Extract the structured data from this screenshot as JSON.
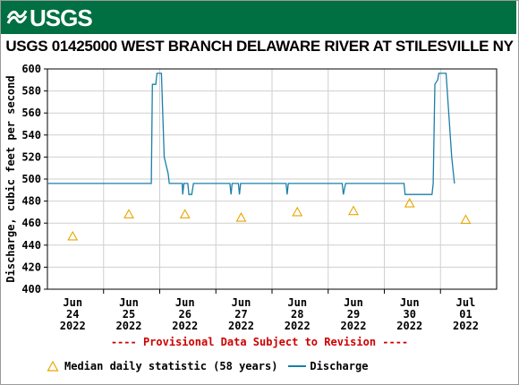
{
  "header": {
    "logo_text": "USGS",
    "logo_icon": "usgs-wave-icon",
    "brand_color": "#006f41"
  },
  "chart_data": {
    "type": "line",
    "title": "USGS 01425000 WEST BRANCH DELAWARE RIVER AT STILESVILLE NY",
    "ylabel": "Discharge, cubic feet per second",
    "xlabel": "",
    "ylim": [
      400,
      600
    ],
    "yticks": [
      400,
      420,
      440,
      460,
      480,
      500,
      520,
      540,
      560,
      580,
      600
    ],
    "x_tick_labels": [
      {
        "month": "Jun",
        "day": "24",
        "year": "2022",
        "day_index": 0
      },
      {
        "month": "Jun",
        "day": "25",
        "year": "2022",
        "day_index": 1
      },
      {
        "month": "Jun",
        "day": "26",
        "year": "2022",
        "day_index": 2
      },
      {
        "month": "Jun",
        "day": "27",
        "year": "2022",
        "day_index": 3
      },
      {
        "month": "Jun",
        "day": "28",
        "year": "2022",
        "day_index": 4
      },
      {
        "month": "Jun",
        "day": "29",
        "year": "2022",
        "day_index": 5
      },
      {
        "month": "Jun",
        "day": "30",
        "year": "2022",
        "day_index": 6
      },
      {
        "month": "Jul",
        "day": "01",
        "year": "2022",
        "day_index": 7
      }
    ],
    "grid": true,
    "annotation": "---- Provisional Data Subject to Revision ----",
    "series": [
      {
        "name": "Discharge",
        "style": "line",
        "color": "#1a7fa8",
        "points": [
          [
            -0.45,
            496
          ],
          [
            1.4,
            496
          ],
          [
            1.42,
            586
          ],
          [
            1.48,
            586
          ],
          [
            1.5,
            596
          ],
          [
            1.58,
            596
          ],
          [
            1.63,
            520
          ],
          [
            1.7,
            505
          ],
          [
            1.72,
            496
          ],
          [
            1.95,
            496
          ],
          [
            1.96,
            486
          ],
          [
            1.98,
            496
          ],
          [
            2.05,
            496
          ],
          [
            2.07,
            486
          ],
          [
            2.12,
            486
          ],
          [
            2.15,
            496
          ],
          [
            2.8,
            496
          ],
          [
            2.82,
            486
          ],
          [
            2.84,
            496
          ],
          [
            2.95,
            496
          ],
          [
            2.97,
            486
          ],
          [
            2.99,
            496
          ],
          [
            3.8,
            496
          ],
          [
            3.82,
            486
          ],
          [
            3.84,
            496
          ],
          [
            4.8,
            496
          ],
          [
            4.82,
            486
          ],
          [
            4.86,
            496
          ],
          [
            5.9,
            496
          ],
          [
            5.92,
            486
          ],
          [
            6.4,
            486
          ],
          [
            6.42,
            496
          ],
          [
            6.45,
            586
          ],
          [
            6.5,
            590
          ],
          [
            6.52,
            596
          ],
          [
            6.65,
            596
          ],
          [
            6.75,
            520
          ],
          [
            6.78,
            505
          ],
          [
            6.8,
            496
          ]
        ]
      },
      {
        "name": "Median daily statistic (58 years)",
        "style": "triangle",
        "color": "#e8a600",
        "points": [
          [
            0,
            448
          ],
          [
            1,
            468
          ],
          [
            2,
            468
          ],
          [
            3,
            465
          ],
          [
            4,
            470
          ],
          [
            5,
            471
          ],
          [
            6,
            478
          ],
          [
            7,
            463
          ]
        ]
      }
    ],
    "legend": {
      "placement": "bottom",
      "median_label": "Median daily statistic (58 years)",
      "discharge_label": "Discharge"
    }
  }
}
